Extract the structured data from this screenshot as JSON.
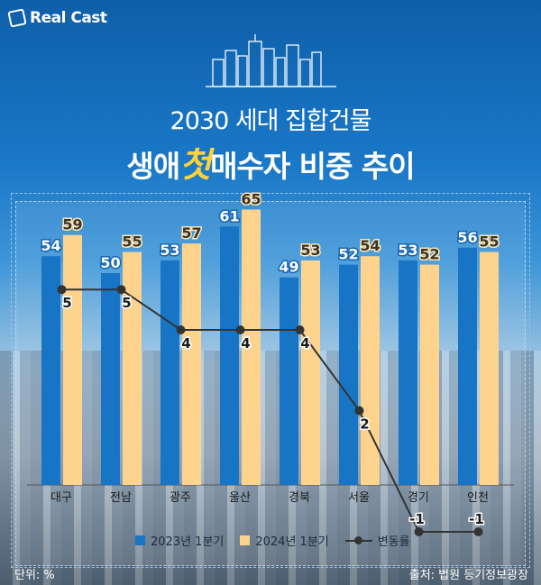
{
  "brand": {
    "name": "Real Cast"
  },
  "title_line1": "2030 세대 집합건물",
  "title_line2_pre": "생애",
  "title_line2_highlight": "첫",
  "title_line2_post": "매수자 비중 추이",
  "unit_label": "단위: %",
  "source_label": "출처: 법원 등기정보광장",
  "colors": {
    "series_2023": "#1875c6",
    "series_2024": "#fdd38e",
    "line": "#333333",
    "highlight": "#ffd23a"
  },
  "chart_data": {
    "type": "bar",
    "categories": [
      "대구",
      "전남",
      "광주",
      "울산",
      "경북",
      "서울",
      "경기",
      "인천"
    ],
    "series": [
      {
        "name": "2023년 1분기",
        "values": [
          54,
          50,
          53,
          61,
          49,
          52,
          53,
          56
        ]
      },
      {
        "name": "2024년 1분기",
        "values": [
          59,
          55,
          57,
          65,
          53,
          54,
          52,
          55
        ]
      }
    ],
    "line_series": {
      "name": "변동률",
      "values": [
        5,
        5,
        4,
        4,
        4,
        2,
        -1,
        -1
      ]
    },
    "legend_position": "bottom",
    "grid": false
  }
}
